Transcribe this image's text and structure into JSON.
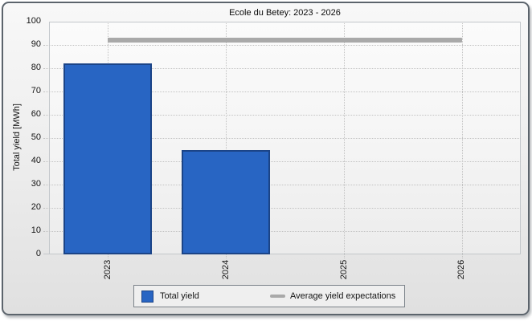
{
  "chart_data": {
    "type": "bar",
    "title": "Ecole du Betey: 2023 - 2026",
    "xlabel": "",
    "ylabel": "Total yield [MWh]",
    "categories": [
      "2023",
      "2024",
      "2025",
      "2026"
    ],
    "series": [
      {
        "name": "Total yield",
        "type": "bar",
        "values": [
          82,
          45,
          null,
          null
        ],
        "fill": "#2865c3",
        "stroke": "#1b4487"
      },
      {
        "name": "Average yield expectations",
        "type": "line",
        "values": [
          92,
          92,
          92,
          92
        ],
        "color": "#a9a9a9"
      }
    ],
    "ylim": [
      0,
      100
    ],
    "ytick_step": 10,
    "grid": "dotted",
    "legend_position": "bottom"
  },
  "colors": {
    "bar_fill": "#2865c3",
    "bar_stroke": "#1b4487",
    "average_line": "#a9a9a9",
    "panel_border": "#5c646c"
  }
}
